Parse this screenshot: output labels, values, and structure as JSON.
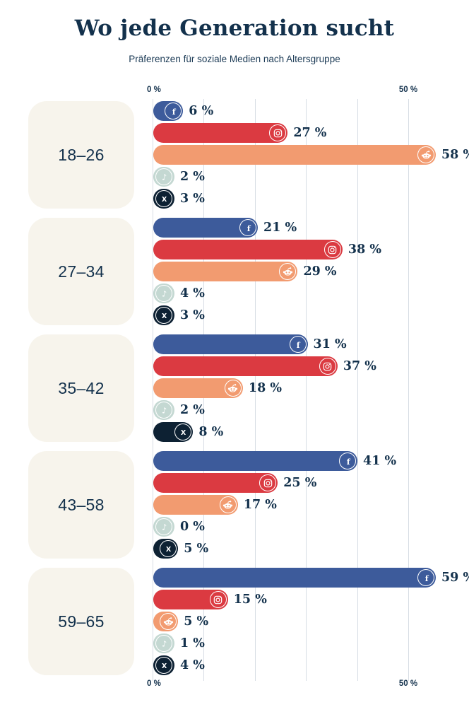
{
  "title": "Wo jede Generation sucht",
  "subtitle": "Präferenzen für soziale Medien nach Altersgruppe",
  "axis": {
    "min_label": "0 %",
    "max_label": "50 %",
    "gridlines_percent": [
      0,
      10,
      20,
      30,
      40,
      50
    ]
  },
  "colors": {
    "background": "#FFFFFF",
    "text_navy": "#13314C",
    "label_box_bg": "#F7F4EC",
    "gridline": "#D7DDE4",
    "icon_ring": "#FFFFFF"
  },
  "chart_data": {
    "type": "bar",
    "orientation": "horizontal",
    "unit": "%",
    "value_suffix": " %",
    "xlim": [
      0,
      50
    ],
    "grid": true,
    "categories": [
      "18–26",
      "27–34",
      "35–42",
      "43–58",
      "59–65"
    ],
    "series": [
      {
        "name": "Facebook",
        "icon": "facebook-icon",
        "color": "#3D5B9B",
        "values": [
          6,
          21,
          31,
          41,
          59
        ]
      },
      {
        "name": "Instagram",
        "icon": "instagram-icon",
        "color": "#DB3A41",
        "values": [
          27,
          38,
          37,
          25,
          15
        ]
      },
      {
        "name": "Reddit",
        "icon": "reddit-icon",
        "color": "#F29B70",
        "values": [
          58,
          29,
          18,
          17,
          5
        ]
      },
      {
        "name": "TikTok",
        "icon": "tiktok-icon",
        "color": "#C4D8D2",
        "values": [
          2,
          4,
          2,
          0,
          1
        ]
      },
      {
        "name": "X",
        "icon": "x-icon",
        "color": "#0D2133",
        "values": [
          3,
          3,
          8,
          5,
          4
        ]
      }
    ]
  }
}
